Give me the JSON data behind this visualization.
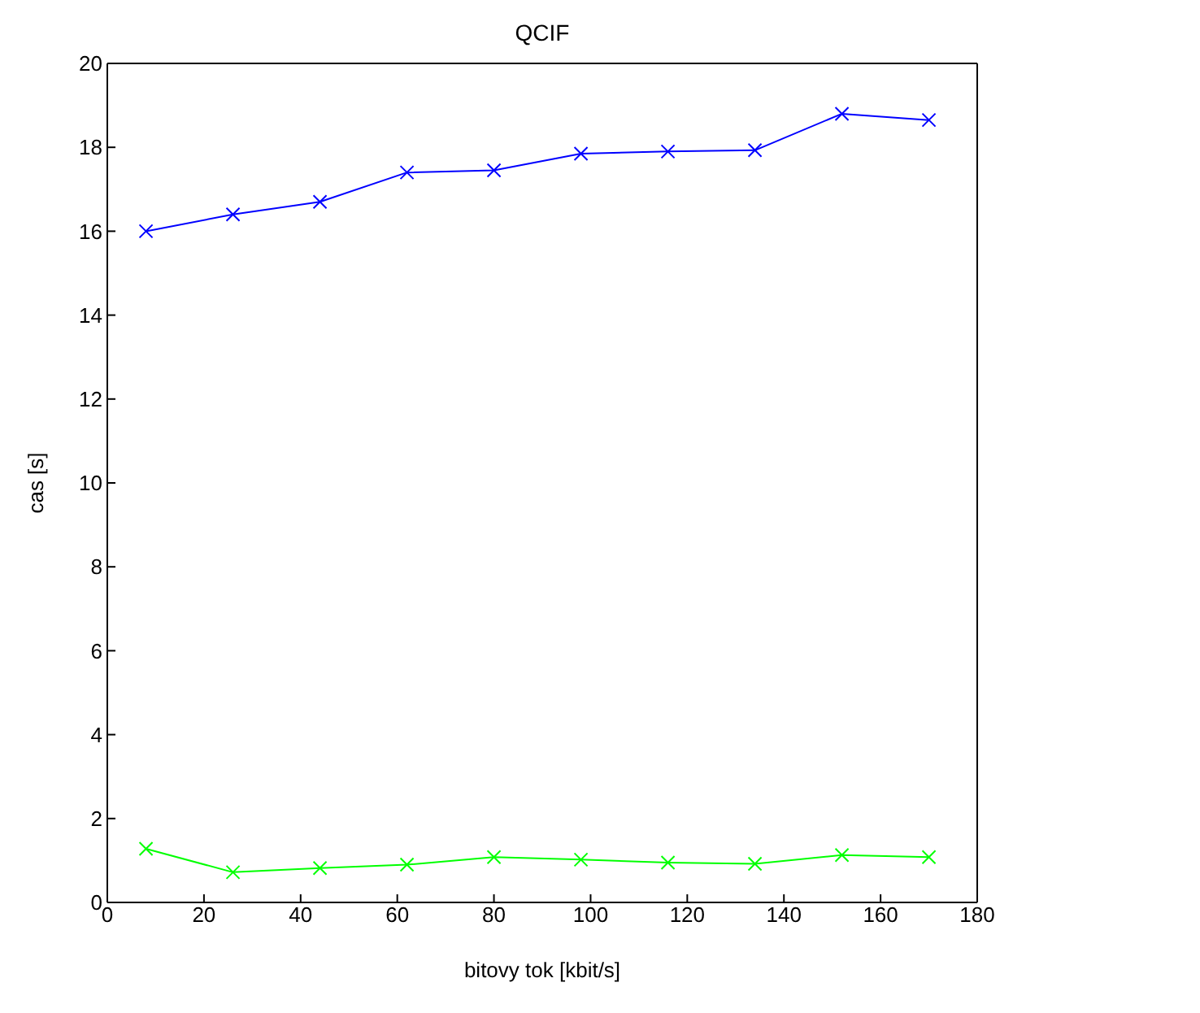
{
  "chart_data": {
    "type": "line",
    "title": "QCIF",
    "xlabel": "bitovy tok [kbit/s]",
    "ylabel": "cas [s]",
    "x": [
      8,
      26,
      44,
      62,
      80,
      98,
      116,
      134,
      152,
      170
    ],
    "series": [
      {
        "color": "#0000ff",
        "values": [
          16.0,
          16.4,
          16.7,
          17.4,
          17.45,
          17.85,
          17.9,
          17.93,
          18.8,
          18.65
        ]
      },
      {
        "color": "#00ff00",
        "values": [
          1.28,
          0.72,
          0.82,
          0.9,
          1.08,
          1.02,
          0.95,
          0.92,
          1.13,
          1.08
        ]
      }
    ],
    "xlim": [
      0,
      180
    ],
    "xticks": [
      0,
      20,
      40,
      60,
      80,
      100,
      120,
      140,
      160,
      180
    ],
    "ylim": [
      0,
      20
    ],
    "yticks": [
      0,
      2,
      4,
      6,
      8,
      10,
      12,
      14,
      16,
      18,
      20
    ],
    "grid": false,
    "marker": "cross",
    "line_style": "solid"
  }
}
